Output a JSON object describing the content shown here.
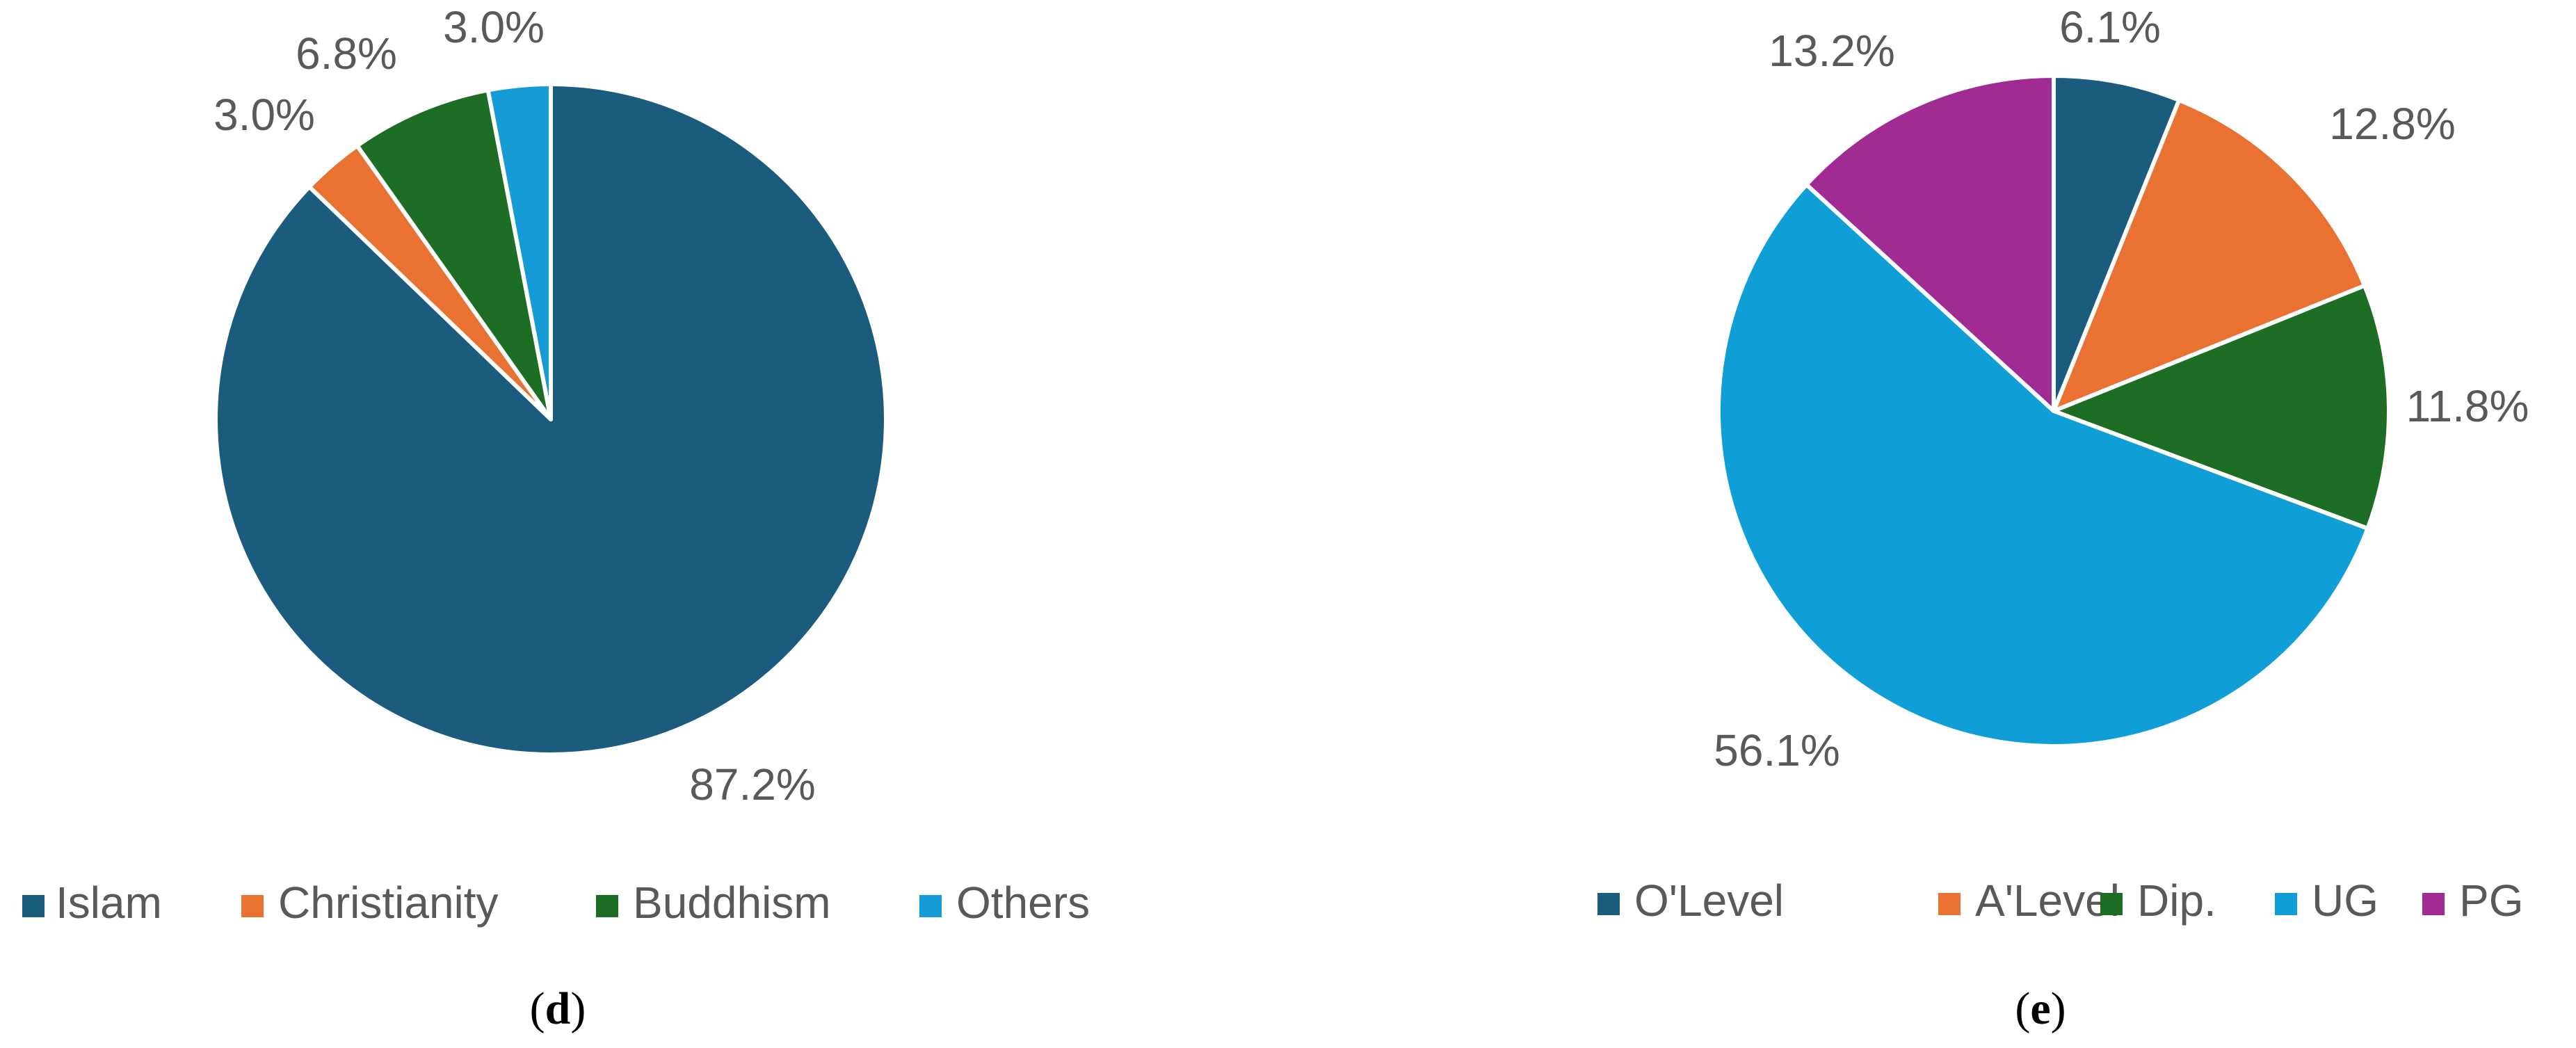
{
  "chart_data": [
    {
      "type": "pie",
      "panel": "d",
      "caption_open": "(",
      "caption_letter": "d",
      "caption_close": ")",
      "categories": [
        "Islam",
        "Christianity",
        "Buddhism",
        "Others"
      ],
      "values": [
        87.2,
        3.0,
        6.8,
        3.0
      ],
      "labels": [
        "87.2%",
        "3.0%",
        "6.8%",
        "3.0%"
      ],
      "colors": [
        "#1a5b7e",
        "#e97132",
        "#1e6d24",
        "#179bd7"
      ],
      "start_angle_deg": 90,
      "direction": "clockwise",
      "legend_position": "bottom"
    },
    {
      "type": "pie",
      "panel": "e",
      "caption_open": "(",
      "caption_letter": "e",
      "caption_close": ")",
      "categories": [
        "O'Level",
        "A'Level",
        "Dip.",
        "UG",
        "PG"
      ],
      "values": [
        6.1,
        12.8,
        11.8,
        56.1,
        13.2
      ],
      "labels": [
        "6.1%",
        "12.8%",
        "11.8%",
        "56.1%",
        "13.2%"
      ],
      "colors": [
        "#1a5b7e",
        "#e97132",
        "#1e6d24",
        "#0f9ed5",
        "#a02b93"
      ],
      "start_angle_deg": 90,
      "direction": "clockwise",
      "legend_position": "bottom"
    }
  ]
}
